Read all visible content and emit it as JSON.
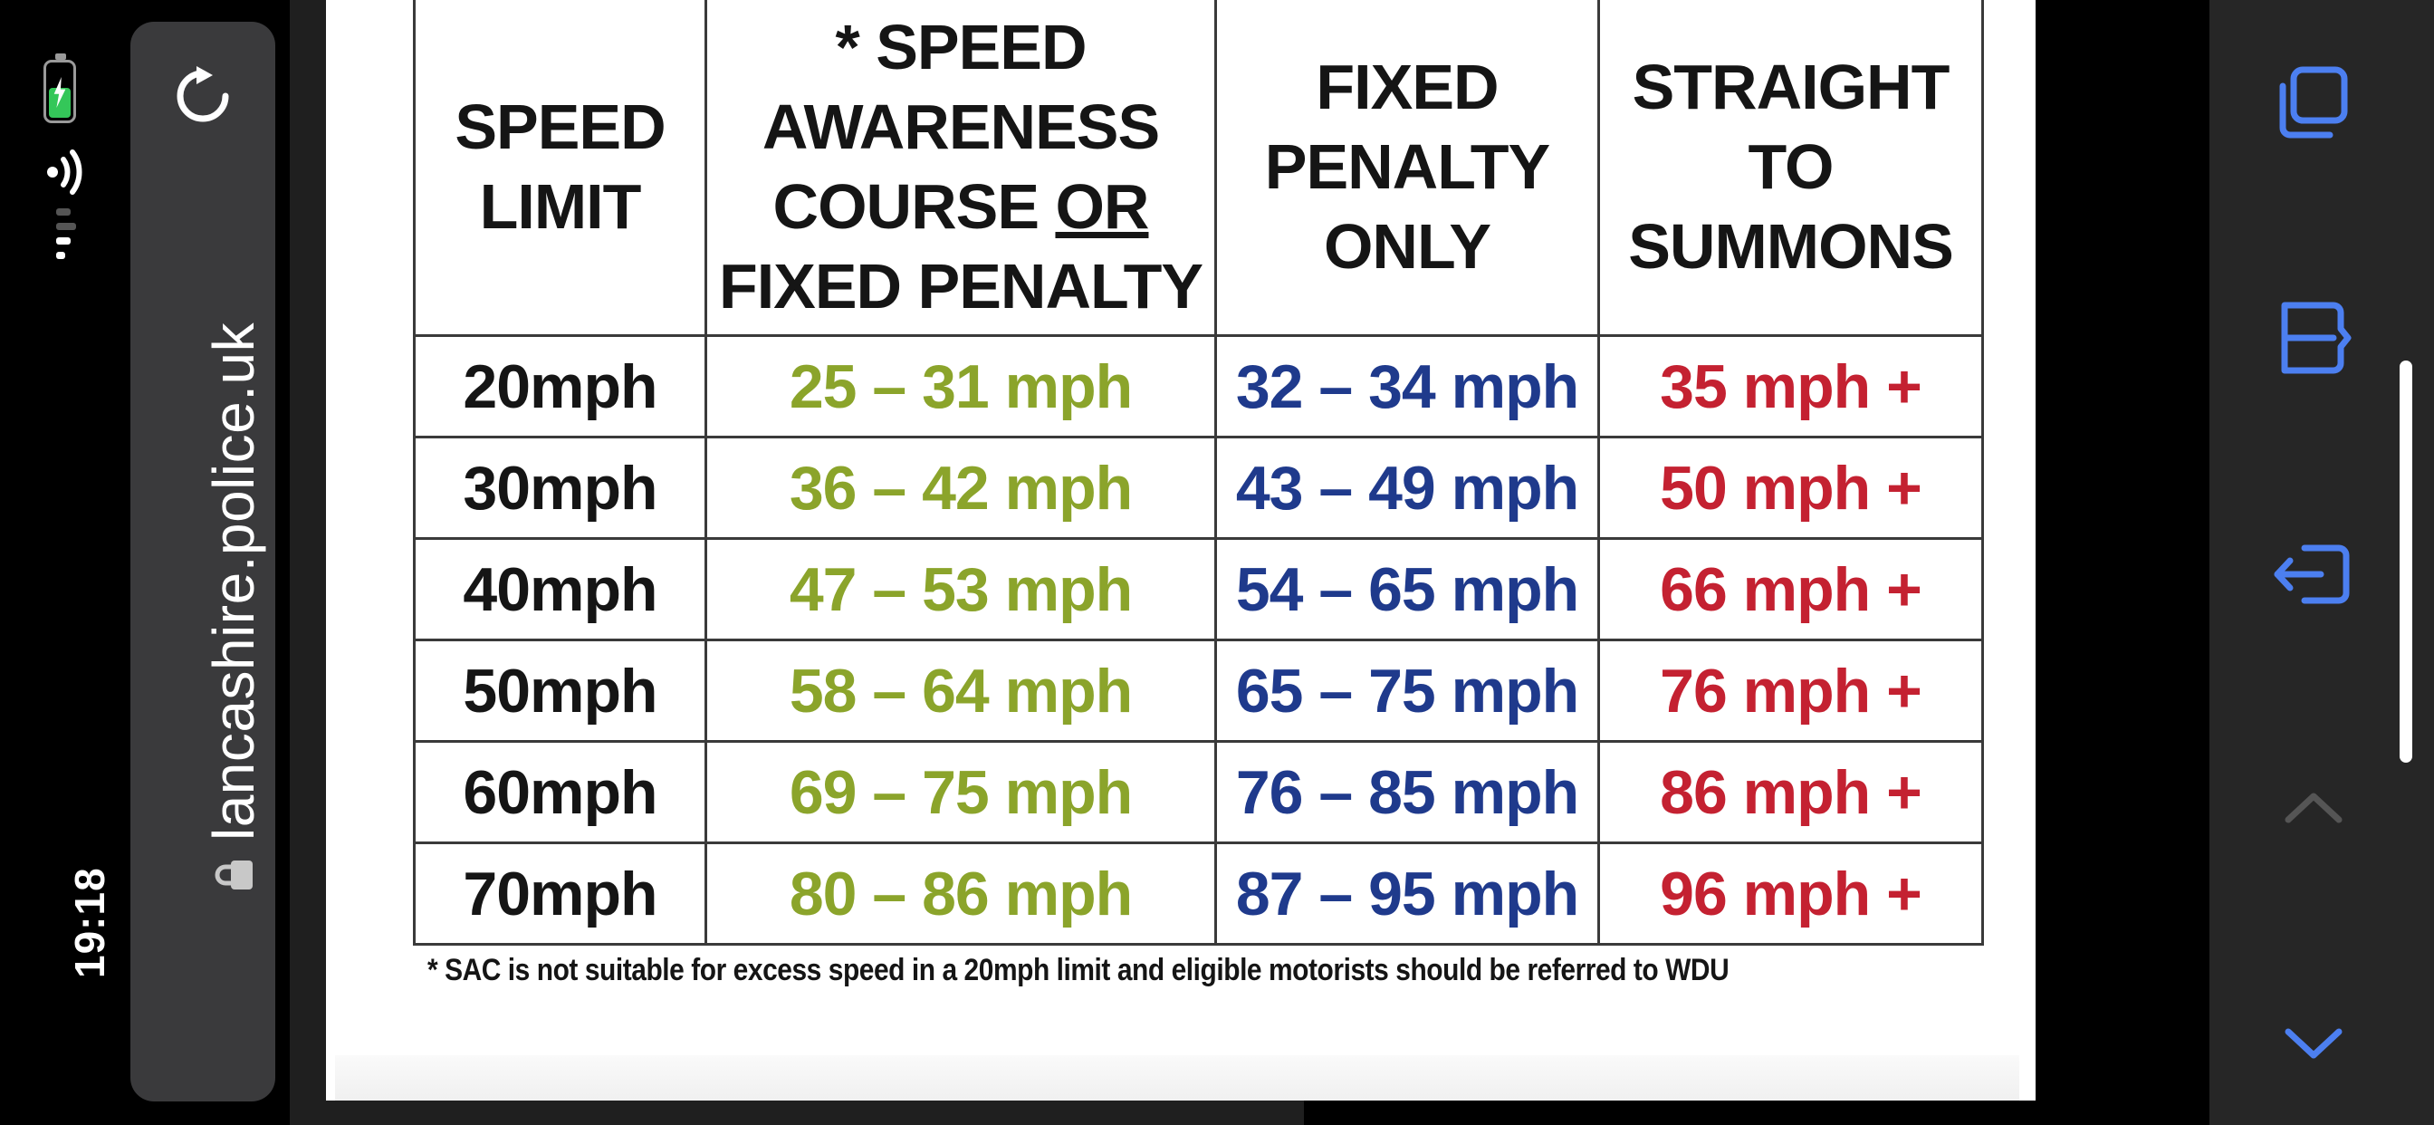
{
  "status": {
    "time": "19:18",
    "battery_color": "#34c759"
  },
  "browser": {
    "url": "lancashire.police.uk",
    "icons": [
      "reload-icon",
      "lock-icon"
    ]
  },
  "toolbar": {
    "icons": [
      "tabs-icon",
      "bookmarks-icon",
      "share-icon",
      "page-up-icon",
      "page-down-icon"
    ],
    "accent": "#4c7ff0",
    "disabled": "#555555"
  },
  "table": {
    "headers": {
      "speed_limit_1": "SPEED",
      "speed_limit_2": "LIMIT",
      "sac_1": "* SPEED",
      "sac_2": "AWARENESS",
      "sac_3a": "COURSE ",
      "sac_3b": "OR",
      "sac_4": "FIXED PENALTY",
      "fp_1": "FIXED",
      "fp_2": "PENALTY",
      "fp_3": "ONLY",
      "st_1": "STRAIGHT",
      "st_2": "TO",
      "st_3": "SUMMONS"
    },
    "rows": [
      {
        "limit": "20mph",
        "sac": "25 – 31 mph",
        "fixed": "32 – 34 mph",
        "summons": "35 mph +"
      },
      {
        "limit": "30mph",
        "sac": "36 – 42 mph",
        "fixed": "43 – 49 mph",
        "summons": "50 mph +"
      },
      {
        "limit": "40mph",
        "sac": "47 – 53 mph",
        "fixed": "54 – 65 mph",
        "summons": "66 mph +"
      },
      {
        "limit": "50mph",
        "sac": "58 – 64 mph",
        "fixed": "65 – 75 mph",
        "summons": "76 mph +"
      },
      {
        "limit": "60mph",
        "sac": "69 – 75 mph",
        "fixed": "76 – 85 mph",
        "summons": "86 mph +"
      },
      {
        "limit": "70mph",
        "sac": "80 – 86 mph",
        "fixed": "87 – 95 mph",
        "summons": "96 mph +"
      }
    ],
    "colors": {
      "sac": "#8ba42b",
      "fixed": "#1f3a8c",
      "summons": "#c42131"
    }
  },
  "footnote": "* SAC is not suitable for excess speed in a 20mph limit and eligible motorists should be referred to WDU"
}
